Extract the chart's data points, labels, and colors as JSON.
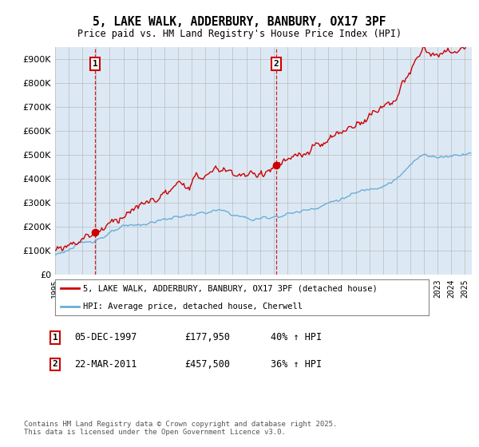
{
  "title": "5, LAKE WALK, ADDERBURY, BANBURY, OX17 3PF",
  "subtitle": "Price paid vs. HM Land Registry's House Price Index (HPI)",
  "sale1_price": 177950,
  "sale2_price": 457500,
  "t1": 1997.9167,
  "t2": 2011.1667,
  "legend1": "5, LAKE WALK, ADDERBURY, BANBURY, OX17 3PF (detached house)",
  "legend2": "HPI: Average price, detached house, Cherwell",
  "row1_date": "05-DEC-1997",
  "row1_price": "£177,950",
  "row1_hpi": "40% ↑ HPI",
  "row2_date": "22-MAR-2011",
  "row2_price": "£457,500",
  "row2_hpi": "36% ↑ HPI",
  "footnote": "Contains HM Land Registry data © Crown copyright and database right 2025.\nThis data is licensed under the Open Government Licence v3.0.",
  "ylim": [
    0,
    950000
  ],
  "yticks": [
    0,
    100000,
    200000,
    300000,
    400000,
    500000,
    600000,
    700000,
    800000,
    900000
  ],
  "hpi_color": "#6baed6",
  "price_color": "#cc0000",
  "grid_color": "#bbbbbb",
  "bg_color": "#ffffff",
  "plot_bg": "#dce9f5",
  "start_year": 1995,
  "end_year": 2025
}
